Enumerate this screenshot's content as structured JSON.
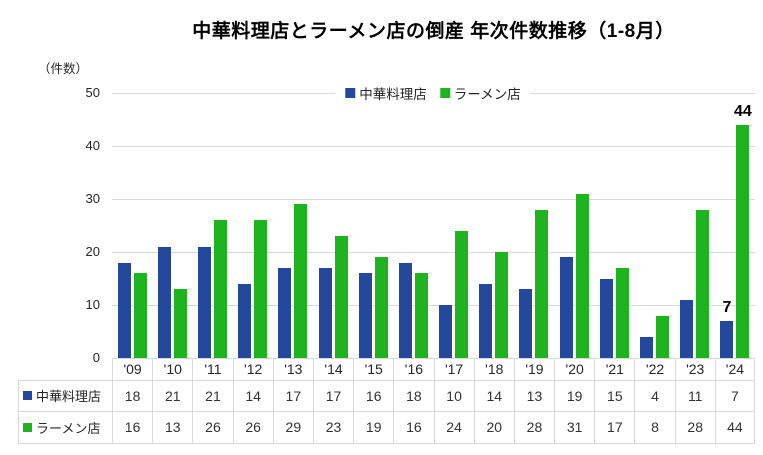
{
  "title": "中華料理店とラーメン店の倒産 年次件数推移（1-8月）",
  "y_axis": {
    "unit": "（件数）",
    "ticks": [
      50,
      40,
      30,
      20,
      10,
      0
    ],
    "max": 50
  },
  "colors": {
    "chuka_blue": "#24489C",
    "ramen_green": "#1FB41F",
    "grid_gray": "#D9D9D9"
  },
  "chart_data": {
    "type": "bar",
    "title": "中華料理店とラーメン店の倒産 年次件数推移（1-8月）",
    "xlabel": "",
    "ylabel": "（件数）",
    "ylim": [
      0,
      50
    ],
    "grid": true,
    "legend_position": "top-center",
    "categories": [
      "'09",
      "'10",
      "'11",
      "'12",
      "'13",
      "'14",
      "'15",
      "'16",
      "'17",
      "'18",
      "'19",
      "'20",
      "'21",
      "'22",
      "'23",
      "'24"
    ],
    "series": [
      {
        "name": "中華料理店",
        "color": "#24489C",
        "values": [
          18,
          21,
          21,
          14,
          17,
          17,
          16,
          18,
          10,
          14,
          13,
          19,
          15,
          4,
          11,
          7
        ]
      },
      {
        "name": "ラーメン店",
        "color": "#1FB41F",
        "values": [
          16,
          13,
          26,
          26,
          29,
          23,
          19,
          16,
          24,
          20,
          28,
          31,
          17,
          8,
          28,
          44
        ]
      }
    ],
    "annotations": [
      {
        "series": 0,
        "index": 15,
        "text": "7"
      },
      {
        "series": 1,
        "index": 15,
        "text": "44"
      }
    ]
  },
  "table": {
    "row_headers": [
      "中華料理店",
      "ラーメン店"
    ]
  }
}
